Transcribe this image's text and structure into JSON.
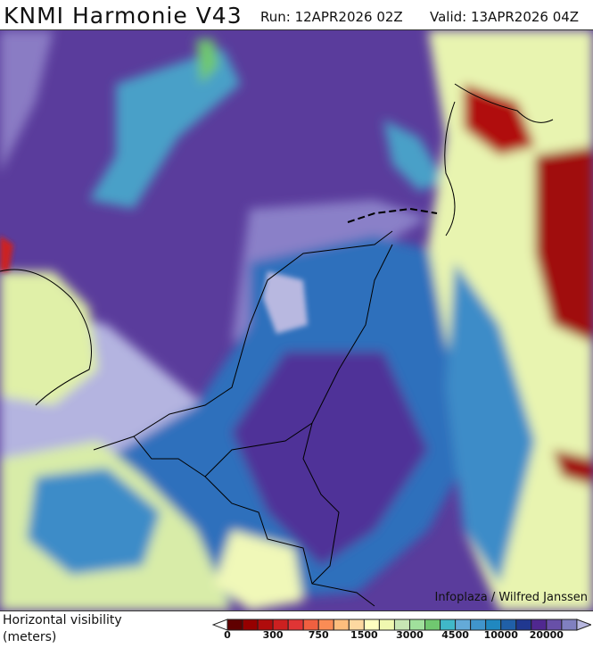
{
  "header": {
    "title": "KNMI Harmonie V43",
    "run": "Run: 12APR2026 02Z",
    "valid": "Valid: 13APR2026 04Z"
  },
  "map": {
    "credit": "Infoplaza / Wilfred Janssen"
  },
  "legend": {
    "variable": "Horizontal visibility",
    "unit": "(meters)",
    "colors": [
      "#600000",
      "#960000",
      "#b00c0c",
      "#cc2020",
      "#e03535",
      "#f06040",
      "#fa8c55",
      "#fdbe7d",
      "#fdd8a0",
      "#ffffc0",
      "#f0f8b0",
      "#c8e6b4",
      "#a0e09c",
      "#70c870",
      "#40b8c8",
      "#64aad8",
      "#4095cc",
      "#2088c0",
      "#2060a8",
      "#203890",
      "#502890",
      "#6850a8",
      "#8080c0"
    ],
    "under_color": "#ffffff",
    "over_color": "#b8b8e0",
    "tick_labels": [
      "0",
      "300",
      "750",
      "1500",
      "3000",
      "4500",
      "10000",
      "20000"
    ]
  }
}
